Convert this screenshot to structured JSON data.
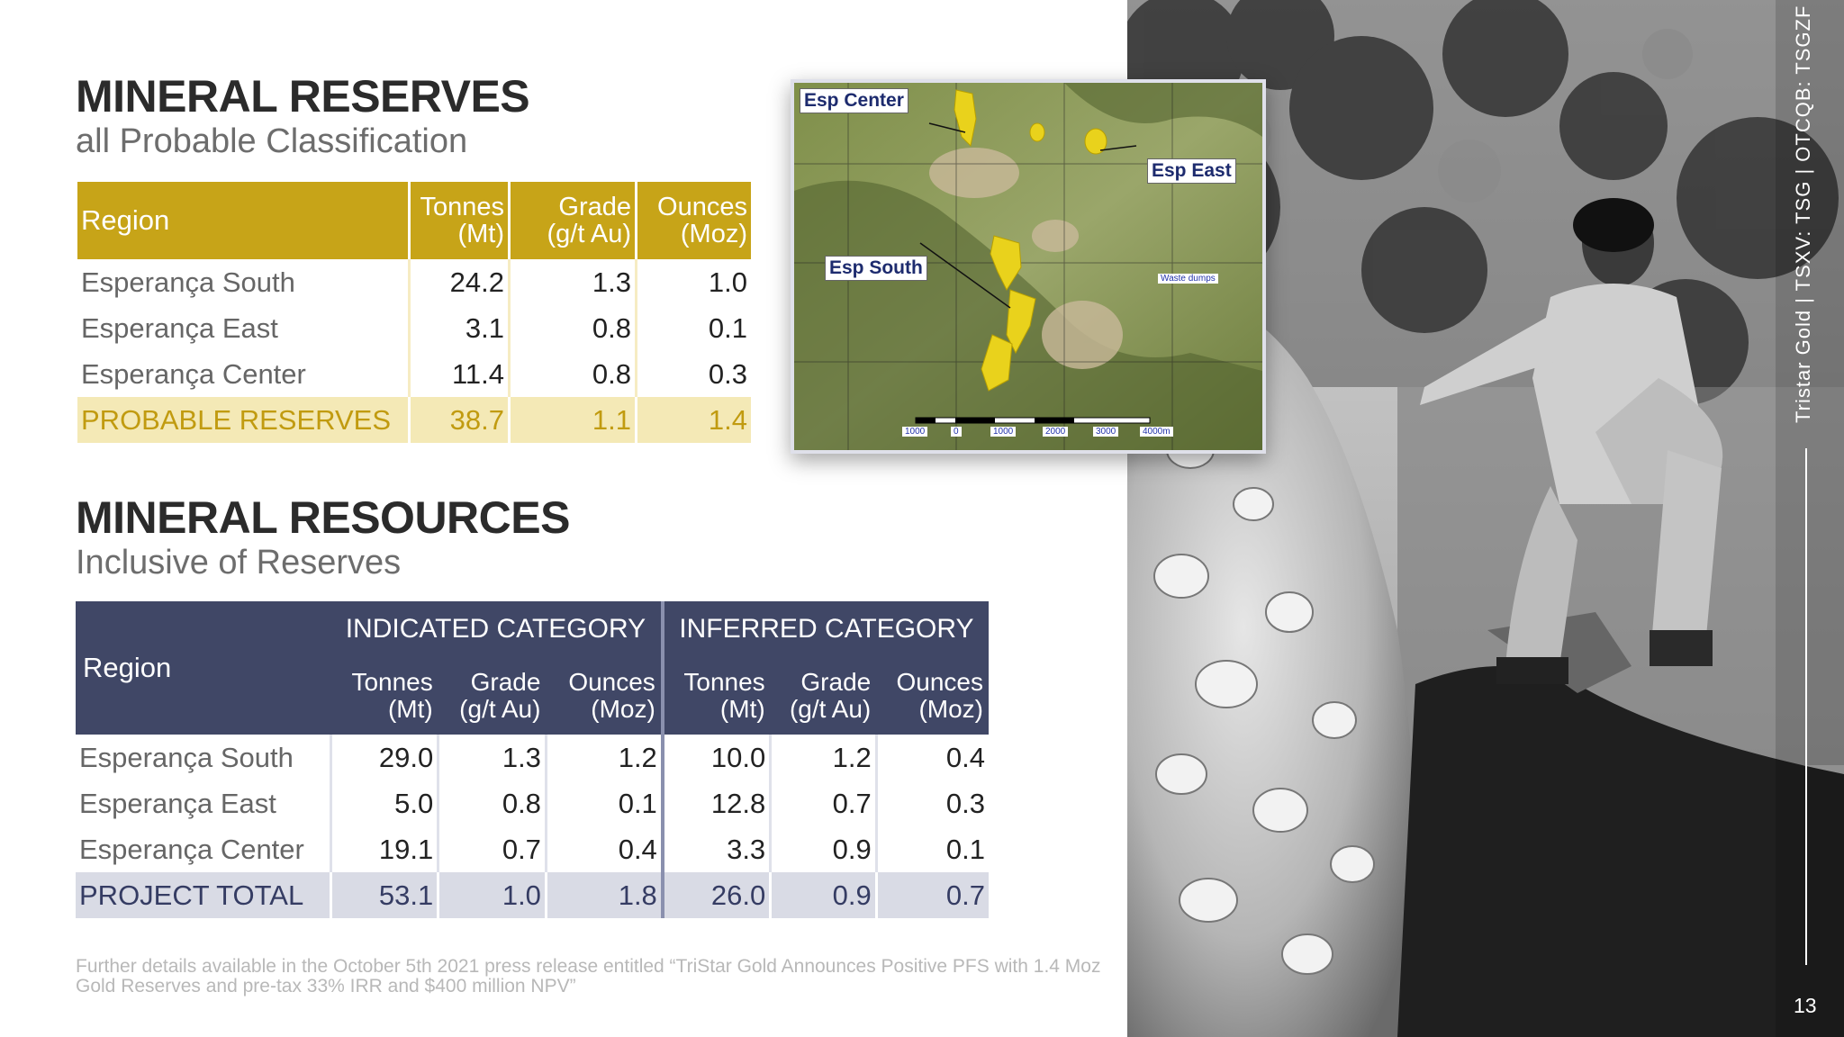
{
  "reserves": {
    "title": "MINERAL RESERVES",
    "subtitle": "all Probable Classification",
    "headers": {
      "region": "Region",
      "tonnes": [
        "Tonnes",
        "(Mt)"
      ],
      "grade": [
        "Grade",
        "(g/t Au)"
      ],
      "ounces": [
        "Ounces",
        "(Moz)"
      ]
    },
    "rows": [
      {
        "region": "Esperança South",
        "tonnes": "24.2",
        "grade": "1.3",
        "ounces": "1.0"
      },
      {
        "region": "Esperança East",
        "tonnes": "3.1",
        "grade": "0.8",
        "ounces": "0.1"
      },
      {
        "region": "Esperança Center",
        "tonnes": "11.4",
        "grade": "0.8",
        "ounces": "0.3"
      }
    ],
    "total": {
      "region": "PROBABLE RESERVES",
      "tonnes": "38.7",
      "grade": "1.1",
      "ounces": "1.4"
    }
  },
  "resources": {
    "title": "MINERAL RESOURCES",
    "subtitle": "Inclusive of Reserves",
    "region_header": "Region",
    "indicated_label": "INDICATED CATEGORY",
    "inferred_label": "INFERRED CATEGORY",
    "col_headers": {
      "tonnes": [
        "Tonnes",
        "(Mt)"
      ],
      "grade": [
        "Grade",
        "(g/t Au)"
      ],
      "ounces": [
        "Ounces",
        "(Moz)"
      ]
    },
    "rows": [
      {
        "region": "Esperança South",
        "ind": [
          "29.0",
          "1.3",
          "1.2"
        ],
        "inf": [
          "10.0",
          "1.2",
          "0.4"
        ]
      },
      {
        "region": "Esperança East",
        "ind": [
          "5.0",
          "0.8",
          "0.1"
        ],
        "inf": [
          "12.8",
          "0.7",
          "0.3"
        ]
      },
      {
        "region": "Esperança Center",
        "ind": [
          "19.1",
          "0.7",
          "0.4"
        ],
        "inf": [
          "3.3",
          "0.9",
          "0.1"
        ]
      }
    ],
    "total": {
      "region": "PROJECT TOTAL",
      "ind": [
        "53.1",
        "1.0",
        "1.8"
      ],
      "inf": [
        "26.0",
        "0.9",
        "0.7"
      ]
    }
  },
  "map": {
    "labels": {
      "center": "Esp Center",
      "east": "Esp East",
      "south": "Esp South",
      "waste": "Waste dumps"
    },
    "scale": [
      "1000",
      "0",
      "1000",
      "2000",
      "3000",
      "4000m"
    ]
  },
  "footnote": "Further details available in the October 5th 2021 press release entitled “TriStar Gold Announces Positive PFS with 1.4 Moz Gold Reserves and pre-tax 33% IRR and $400 million NPV”",
  "sidebar_text": "Tristar Gold | TSXV: TSG | OTCQB: TSGZF",
  "page_number": "13",
  "colors": {
    "gold": "#c7a418",
    "navy": "#404766"
  }
}
